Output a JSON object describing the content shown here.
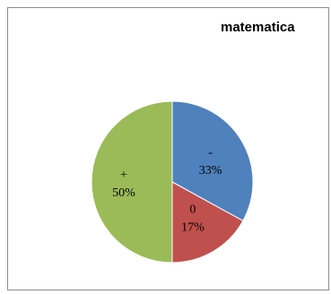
{
  "chart_data": {
    "type": "pie",
    "title": "matematica",
    "categories": [
      "-",
      "0",
      "+"
    ],
    "values": [
      33,
      17,
      50
    ],
    "value_labels": [
      "33%",
      "17%",
      "50%"
    ],
    "colors": [
      "#4f81bd",
      "#c0504d",
      "#9bbb59"
    ],
    "legend": "none"
  }
}
